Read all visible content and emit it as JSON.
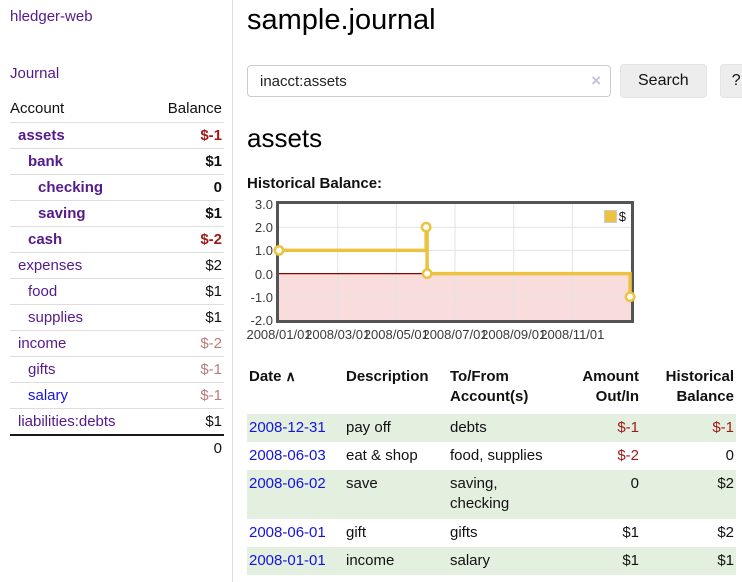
{
  "colors": {
    "link_visited_purple": "#551A8B",
    "link_blue": "#1414dd",
    "negative_strong": "#a01a1a",
    "negative_dim": "#b97c7c",
    "row_shade_green": "#e3efdf",
    "chart_line_gold": "#EDC240",
    "chart_negative_fill": "#f9dcdc",
    "chart_zero_line": "#8b0000",
    "chart_grid": "#e3e3e3",
    "chart_border": "#545454"
  },
  "sidebar": {
    "brand": "hledger-web",
    "journal_label": "Journal",
    "accounts_table": {
      "headers": {
        "account": "Account",
        "balance": "Balance"
      },
      "rows": [
        {
          "name": "assets",
          "indent": 1,
          "bold": true,
          "balance": "$-1",
          "balance_style": "neg-strong",
          "link_style": "purple"
        },
        {
          "name": "bank",
          "indent": 2,
          "bold": true,
          "balance": "$1",
          "balance_style": "plain",
          "link_style": "purple"
        },
        {
          "name": "checking",
          "indent": 3,
          "bold": true,
          "balance": "0",
          "balance_style": "plain",
          "link_style": "purple"
        },
        {
          "name": "saving",
          "indent": 3,
          "bold": true,
          "balance": "$1",
          "balance_style": "plain",
          "link_style": "purple"
        },
        {
          "name": "cash",
          "indent": 2,
          "bold": true,
          "balance": "$-2",
          "balance_style": "neg-strong",
          "link_style": "purple"
        },
        {
          "name": "expenses",
          "indent": 1,
          "bold": false,
          "balance": "$2",
          "balance_style": "plain",
          "link_style": "purple"
        },
        {
          "name": "food",
          "indent": 2,
          "bold": false,
          "balance": "$1",
          "balance_style": "plain",
          "link_style": "purple"
        },
        {
          "name": "supplies",
          "indent": 2,
          "bold": false,
          "balance": "$1",
          "balance_style": "plain",
          "link_style": "purple"
        },
        {
          "name": "income",
          "indent": 1,
          "bold": false,
          "balance": "$-2",
          "balance_style": "neg-dim",
          "link_style": "purple"
        },
        {
          "name": "gifts",
          "indent": 2,
          "bold": false,
          "balance": "$-1",
          "balance_style": "neg-dim",
          "link_style": "purple"
        },
        {
          "name": "salary",
          "indent": 2,
          "bold": false,
          "balance": "$-1",
          "balance_style": "neg-dim",
          "link_style": "blue"
        },
        {
          "name": "liabilities:debts",
          "indent": 1,
          "bold": false,
          "balance": "$1",
          "balance_style": "plain",
          "link_style": "purple"
        }
      ],
      "total": "0"
    }
  },
  "header": {
    "title": "sample.journal"
  },
  "search": {
    "query": "inacct:assets",
    "clear_icon": "×",
    "button_label": "Search",
    "help_label": "?"
  },
  "account_page": {
    "heading": "assets",
    "chart_label": "Historical Balance:"
  },
  "chart_data": {
    "type": "line",
    "style": "step",
    "title": "Historical Balance",
    "series": [
      {
        "name": "$",
        "points": [
          {
            "date": "2008-01-01",
            "value": 1
          },
          {
            "date": "2008-06-02",
            "value": 2
          },
          {
            "date": "2008-06-03",
            "value": 0
          },
          {
            "date": "2008-12-31",
            "value": -1
          }
        ]
      }
    ],
    "xlim": [
      "2008-01-01",
      "2009-01-01"
    ],
    "ylim": [
      -2,
      3
    ],
    "ytick_labels": [
      "3.0",
      "2.0",
      "1.0",
      "0.0",
      "-1.0",
      "-2.0"
    ],
    "ytick_values": [
      3,
      2,
      1,
      0,
      -1,
      -2
    ],
    "xtick_labels": [
      "2008/01/01",
      "2008/03/01",
      "2008/05/01",
      "2008/07/01",
      "2008/09/01",
      "2008/11/01"
    ],
    "xtick_month_offsets": [
      0,
      2,
      4,
      6,
      8,
      10
    ],
    "grid": true,
    "negative_region_shaded": true,
    "legend": {
      "position": "top-right",
      "label": "$"
    }
  },
  "register_table": {
    "headers": {
      "date": "Date",
      "sort_icon": "∧",
      "description": "Description",
      "accounts": "To/From Account(s)",
      "amount": "Amount Out/In",
      "balance": "Historical Balance"
    },
    "rows": [
      {
        "date": "2008-12-31",
        "description": "pay off",
        "accounts": "debts",
        "amount": "$-1",
        "amount_neg": true,
        "balance": "$-1",
        "balance_neg": true,
        "shaded": true
      },
      {
        "date": "2008-06-03",
        "description": "eat & shop",
        "accounts": "food, supplies",
        "amount": "$-2",
        "amount_neg": true,
        "balance": "0",
        "balance_neg": false,
        "shaded": false
      },
      {
        "date": "2008-06-02",
        "description": "save",
        "accounts": "saving, checking",
        "amount": "0",
        "amount_neg": false,
        "balance": "$2",
        "balance_neg": false,
        "shaded": true
      },
      {
        "date": "2008-06-01",
        "description": "gift",
        "accounts": "gifts",
        "amount": "$1",
        "amount_neg": false,
        "balance": "$2",
        "balance_neg": false,
        "shaded": false
      },
      {
        "date": "2008-01-01",
        "description": "income",
        "accounts": "salary",
        "amount": "$1",
        "amount_neg": false,
        "balance": "$1",
        "balance_neg": false,
        "shaded": true
      }
    ]
  }
}
